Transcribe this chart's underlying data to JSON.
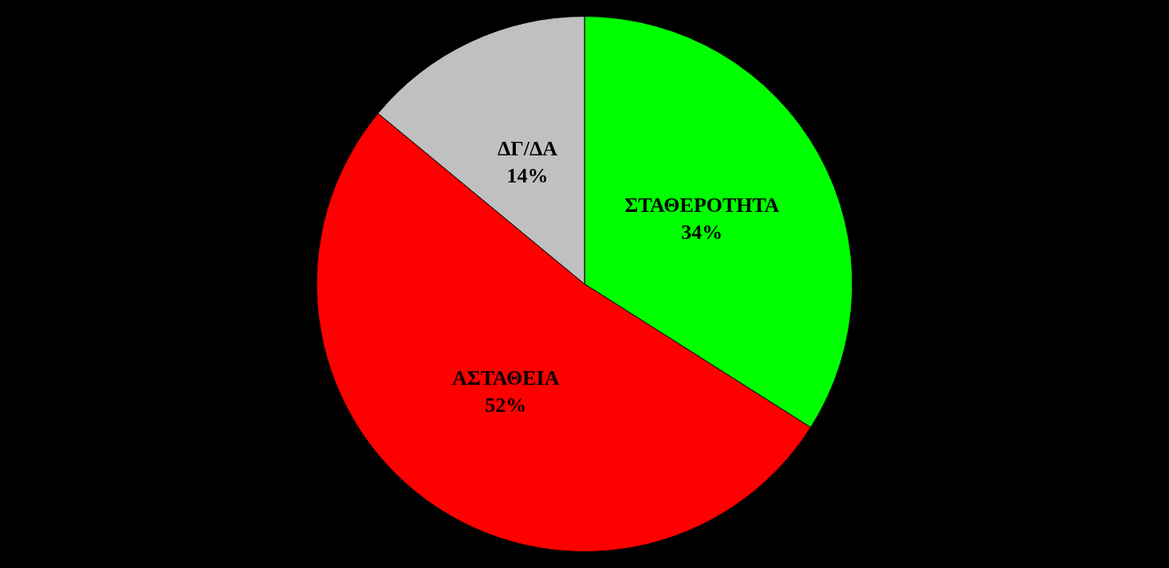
{
  "chart_data": {
    "type": "pie",
    "categories": [
      "ΣΤΑΘΕΡΟΤΗΤΑ",
      "ΑΣΤΑΘΕΙΑ",
      "ΔΓ/ΔΑ"
    ],
    "values": [
      34,
      52,
      14
    ],
    "colors": [
      "#00ff00",
      "#ff0000",
      "#c0c0c0"
    ],
    "value_labels": [
      "34%",
      "52%",
      "14%"
    ],
    "legend": false
  }
}
